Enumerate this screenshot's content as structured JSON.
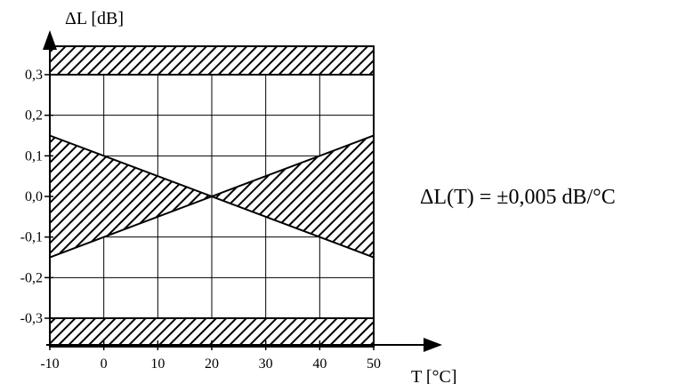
{
  "chart_data": {
    "type": "area",
    "xlabel": "T [°C]",
    "ylabel": "ΔL [dB]",
    "xlim": [
      -10,
      50
    ],
    "ylim": [
      -0.3,
      0.3
    ],
    "x_ticks": [
      "-10",
      "0",
      "10",
      "20",
      "30",
      "40",
      "50"
    ],
    "y_ticks": [
      "0,3",
      "0,2",
      "0,1",
      "0,0",
      "-0,1",
      "-0,2",
      "-0,3"
    ],
    "grid": true,
    "annotation": "ΔL(T) = ±0,005 dB/°C",
    "limit_bands": [
      {
        "y_range": [
          0.3,
          0.37
        ]
      },
      {
        "y_range": [
          -0.37,
          -0.3
        ]
      }
    ],
    "tolerance_region": {
      "x": [
        -10,
        20,
        50
      ],
      "upper": [
        0.15,
        0.0,
        0.15
      ],
      "lower": [
        -0.15,
        0.0,
        -0.15
      ]
    }
  }
}
